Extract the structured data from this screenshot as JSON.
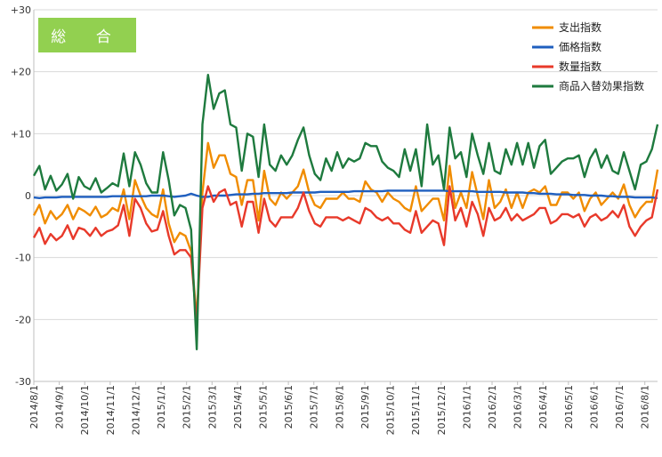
{
  "chart_data": {
    "type": "line",
    "title": "総 合",
    "y_ticks": [
      "+30",
      "+20",
      "+10",
      "0",
      "-10",
      "-20",
      "-30"
    ],
    "ylim": [
      -30,
      30
    ],
    "x_tick_labels": [
      "2014/8/1",
      "2014/9/1",
      "2014/10/1",
      "2014/11/1",
      "2014/12/1",
      "2015/1/1",
      "2015/2/1",
      "2015/3/1",
      "2015/4/1",
      "2015/5/1",
      "2015/6/1",
      "2015/7/1",
      "2015/8/1",
      "2015/9/1",
      "2015/10/1",
      "2015/11/1",
      "2015/12/1",
      "2016/1/1",
      "2016/2/1",
      "2016/3/1",
      "2016/4/1",
      "2016/5/1",
      "2016/6/1",
      "2016/7/1",
      "2016/8/1"
    ],
    "grid": "horizontal",
    "legend_position": "top-right",
    "series": [
      {
        "name": "支出指数",
        "color": "#f08c00",
        "values": [
          -3.2,
          -1.5,
          -4.5,
          -2.5,
          -3.8,
          -3.0,
          -1.5,
          -3.8,
          -2.0,
          -2.5,
          -3.2,
          -1.8,
          -3.5,
          -3.0,
          -2.0,
          -2.5,
          1.0,
          -3.8,
          2.5,
          0.0,
          -2.0,
          -3.0,
          -3.5,
          1.0,
          -4.5,
          -7.5,
          -6.0,
          -6.5,
          -9.0,
          -20.0,
          0.5,
          8.5,
          4.5,
          6.5,
          6.5,
          3.5,
          3.0,
          -1.5,
          2.5,
          2.5,
          -4.0,
          4.0,
          -0.5,
          -1.5,
          0.5,
          -0.5,
          0.5,
          1.5,
          4.2,
          0.5,
          -1.5,
          -2.0,
          -0.5,
          -0.5,
          -0.5,
          0.5,
          -0.5,
          -0.5,
          -1.0,
          2.3,
          1.0,
          0.5,
          -1.0,
          0.5,
          -0.5,
          -1.0,
          -2.0,
          -2.5,
          1.5,
          -2.5,
          -1.5,
          -0.5,
          -0.5,
          -4.0,
          4.8,
          -2.0,
          0.5,
          -2.0,
          3.8,
          0.0,
          -3.8,
          2.5,
          -2.0,
          -1.0,
          1.0,
          -2.0,
          0.5,
          -2.0,
          0.5,
          1.0,
          0.5,
          1.5,
          -1.5,
          -1.5,
          0.5,
          0.5,
          -0.5,
          0.5,
          -2.5,
          -0.5,
          0.5,
          -1.5,
          -0.5,
          0.5,
          -0.5,
          1.8,
          -1.5,
          -3.5,
          -2.0,
          -1.0,
          -1.0,
          4.2
        ]
      },
      {
        "name": "価格指数",
        "color": "#1f5fbf",
        "values": [
          -0.3,
          -0.4,
          -0.3,
          -0.3,
          -0.3,
          -0.2,
          -0.2,
          -0.2,
          -0.2,
          -0.2,
          -0.2,
          -0.2,
          -0.2,
          -0.2,
          -0.1,
          -0.1,
          -0.1,
          -0.1,
          -0.1,
          -0.1,
          -0.1,
          0.0,
          0.0,
          0.0,
          -0.1,
          -0.2,
          -0.1,
          0.0,
          0.3,
          0.0,
          -0.2,
          -0.2,
          0.0,
          0.0,
          0.0,
          0.1,
          0.2,
          0.2,
          0.2,
          0.3,
          0.3,
          0.4,
          0.4,
          0.4,
          0.4,
          0.4,
          0.5,
          0.5,
          0.5,
          0.5,
          0.5,
          0.6,
          0.6,
          0.6,
          0.6,
          0.6,
          0.6,
          0.7,
          0.7,
          0.7,
          0.7,
          0.7,
          0.7,
          0.8,
          0.8,
          0.8,
          0.8,
          0.8,
          0.8,
          0.8,
          0.8,
          0.8,
          0.8,
          0.8,
          0.7,
          0.7,
          0.7,
          0.7,
          0.7,
          0.6,
          0.6,
          0.6,
          0.6,
          0.6,
          0.5,
          0.5,
          0.5,
          0.5,
          0.4,
          0.4,
          0.3,
          0.3,
          0.3,
          0.2,
          0.2,
          0.2,
          0.1,
          0.1,
          0.1,
          0.0,
          0.0,
          0.0,
          -0.1,
          -0.1,
          -0.2,
          -0.2,
          -0.2,
          -0.3,
          -0.3,
          -0.3,
          -0.3,
          -0.4
        ]
      },
      {
        "name": "数量指数",
        "color": "#e8392a",
        "values": [
          -6.8,
          -5.2,
          -7.8,
          -6.2,
          -7.2,
          -6.5,
          -4.8,
          -7.0,
          -5.2,
          -5.5,
          -6.5,
          -5.2,
          -6.5,
          -5.8,
          -5.5,
          -4.8,
          -1.5,
          -6.5,
          -0.5,
          -2.0,
          -4.5,
          -5.8,
          -5.5,
          -2.5,
          -6.5,
          -9.5,
          -8.8,
          -8.8,
          -10.0,
          -20.5,
          -2.0,
          1.5,
          -1.0,
          0.5,
          1.0,
          -1.5,
          -1.0,
          -5.0,
          -1.0,
          -1.0,
          -6.0,
          -0.5,
          -4.0,
          -5.0,
          -3.5,
          -3.5,
          -3.5,
          -2.0,
          0.5,
          -2.5,
          -4.5,
          -5.0,
          -3.5,
          -3.5,
          -3.5,
          -4.0,
          -3.5,
          -4.0,
          -4.5,
          -2.0,
          -2.5,
          -3.5,
          -4.0,
          -3.5,
          -4.5,
          -4.5,
          -5.5,
          -6.0,
          -2.5,
          -6.0,
          -5.0,
          -4.0,
          -4.5,
          -8.0,
          1.5,
          -4.0,
          -2.0,
          -5.0,
          -1.0,
          -3.0,
          -6.5,
          -2.0,
          -4.0,
          -3.5,
          -2.0,
          -4.0,
          -3.0,
          -4.0,
          -3.5,
          -3.0,
          -2.0,
          -2.0,
          -4.5,
          -4.0,
          -3.0,
          -3.0,
          -3.5,
          -3.0,
          -5.0,
          -3.5,
          -3.0,
          -4.0,
          -3.5,
          -2.5,
          -3.5,
          -1.5,
          -5.0,
          -6.5,
          -5.0,
          -4.0,
          -3.5,
          1.0
        ]
      },
      {
        "name": "商品入替効果指数",
        "color": "#1e7a3e",
        "values": [
          3.2,
          4.8,
          1.0,
          3.2,
          0.8,
          1.8,
          3.5,
          -0.5,
          3.0,
          1.5,
          1.0,
          2.8,
          0.5,
          1.2,
          2.0,
          1.5,
          6.8,
          1.5,
          7.0,
          5.0,
          2.0,
          0.5,
          0.5,
          7.0,
          2.5,
          -3.2,
          -1.5,
          -2.0,
          -5.5,
          -24.8,
          11.5,
          19.5,
          14.0,
          16.5,
          17.0,
          11.5,
          11.0,
          4.0,
          10.0,
          9.5,
          3.0,
          11.5,
          5.0,
          4.0,
          6.5,
          5.0,
          6.5,
          9.0,
          11.0,
          6.5,
          3.5,
          2.5,
          6.0,
          4.0,
          7.0,
          4.5,
          6.0,
          5.5,
          6.0,
          8.5,
          8.0,
          8.0,
          5.5,
          4.5,
          4.0,
          3.0,
          7.5,
          4.0,
          7.5,
          1.5,
          11.5,
          5.0,
          6.5,
          1.0,
          11.0,
          6.0,
          7.0,
          3.0,
          10.0,
          6.5,
          3.5,
          8.5,
          4.0,
          3.5,
          7.5,
          5.0,
          8.5,
          5.0,
          8.5,
          4.5,
          8.0,
          9.0,
          3.5,
          4.5,
          5.5,
          6.0,
          6.0,
          6.5,
          3.0,
          6.0,
          7.5,
          4.5,
          6.5,
          4.0,
          3.5,
          7.0,
          4.0,
          1.0,
          5.0,
          5.5,
          7.5,
          11.5
        ]
      }
    ]
  }
}
